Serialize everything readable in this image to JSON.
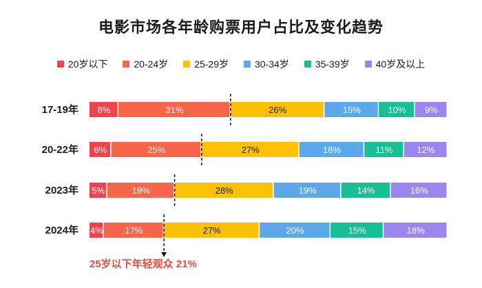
{
  "chart_data": {
    "type": "bar",
    "orientation": "horizontal",
    "stacked": true,
    "percent": true,
    "title": "电影市场各年龄购票用户占比及变化趋势",
    "categories": [
      "17-19年",
      "20-22年",
      "2023年",
      "2024年"
    ],
    "series": [
      {
        "name": "20岁以下",
        "values": [
          8,
          6,
          5,
          4
        ],
        "labels": [
          "8%",
          "6%",
          "5%",
          "4%"
        ],
        "color": "#f2434b"
      },
      {
        "name": "20-24岁",
        "values": [
          31,
          25,
          19,
          17
        ],
        "labels": [
          "31%",
          "25%",
          "19%",
          "17%"
        ],
        "color": "#f7664a"
      },
      {
        "name": "25-29岁",
        "values": [
          26,
          27,
          28,
          27
        ],
        "labels": [
          "26%",
          "27%",
          "28%",
          "27%"
        ],
        "color": "#fcc104"
      },
      {
        "name": "30-34岁",
        "values": [
          15,
          18,
          19,
          20
        ],
        "labels": [
          "15%",
          "18%",
          "19%",
          "20%"
        ],
        "color": "#5ba9eb"
      },
      {
        "name": "35-39岁",
        "values": [
          10,
          11,
          14,
          15
        ],
        "labels": [
          "10%",
          "11%",
          "14%",
          "15%"
        ],
        "color": "#17bf96"
      },
      {
        "name": "40岁及以上",
        "values": [
          9,
          12,
          16,
          18
        ],
        "labels": [
          "9%",
          "12%",
          "16%",
          "18%"
        ],
        "color": "#9b86ee"
      }
    ],
    "legend_position": "top",
    "annotation": "25岁以下年轻观众 21%",
    "annotation_color": "#e84a3c",
    "grid": false
  }
}
